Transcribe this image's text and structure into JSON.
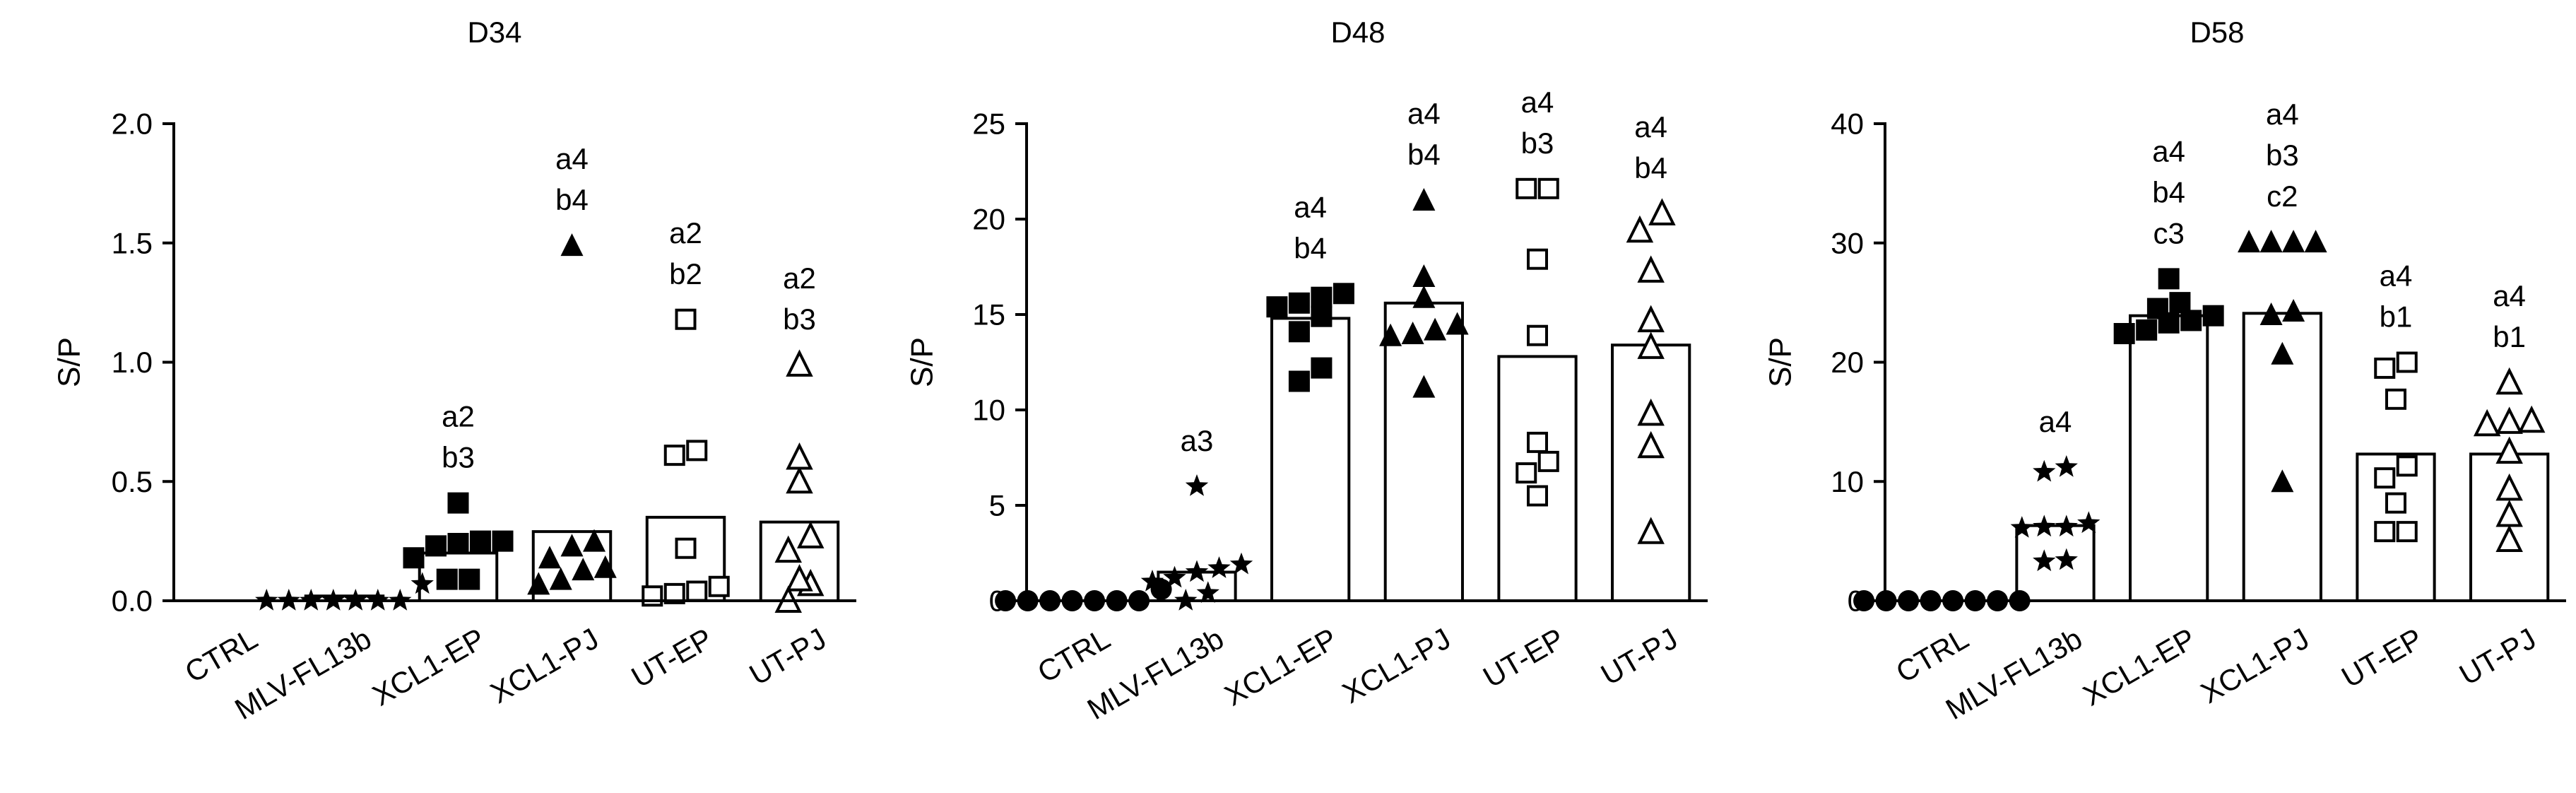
{
  "chart_data": [
    {
      "type": "bar",
      "title": "D34",
      "ylabel": "S/P",
      "xlabel": "",
      "ylim": [
        0,
        2.0
      ],
      "yticks": [
        0.0,
        0.5,
        1.0,
        1.5,
        2.0
      ],
      "ytick_labels": [
        "0.0",
        "0.5",
        "1.0",
        "1.5",
        "2.0"
      ],
      "categories": [
        "CTRL",
        "MLV-FL13b",
        "XCL1-EP",
        "XCL1-PJ",
        "UT-EP",
        "UT-PJ"
      ],
      "markers": [
        "circle-filled",
        "star",
        "square-filled",
        "triangle-filled",
        "square-open",
        "triangle-open"
      ],
      "values": [
        0.0,
        0.02,
        0.2,
        0.29,
        0.35,
        0.33
      ],
      "points": [
        [],
        [
          0.07,
          0.0,
          0.0,
          0.0,
          0.0,
          0.0,
          0.0,
          0.0
        ],
        [
          0.41,
          0.25,
          0.25,
          0.24,
          0.23,
          0.18,
          0.09,
          0.09
        ],
        [
          1.49,
          0.25,
          0.23,
          0.18,
          0.14,
          0.13,
          0.09,
          0.07
        ],
        [
          1.18,
          0.63,
          0.61,
          0.22,
          0.06,
          0.04,
          0.03,
          0.02
        ],
        [
          0.99,
          0.6,
          0.5,
          0.27,
          0.21,
          0.09,
          0.07,
          0.0
        ]
      ],
      "annotations": [
        [],
        [],
        [
          "a2",
          "b3"
        ],
        [
          "a4",
          "b4"
        ],
        [
          "a2",
          "b2"
        ],
        [
          "a2",
          "b3"
        ]
      ]
    },
    {
      "type": "bar",
      "title": "D48",
      "ylabel": "S/P",
      "xlabel": "",
      "ylim": [
        0,
        25
      ],
      "yticks": [
        0,
        5,
        10,
        15,
        20,
        25
      ],
      "ytick_labels": [
        "0",
        "5",
        "10",
        "15",
        "20",
        "25"
      ],
      "categories": [
        "CTRL",
        "MLV-FL13b",
        "XCL1-EP",
        "XCL1-PJ",
        "UT-EP",
        "UT-PJ"
      ],
      "markers": [
        "circle-filled",
        "star",
        "square-filled",
        "triangle-filled",
        "square-open",
        "triangle-open"
      ],
      "values": [
        0.0,
        1.5,
        14.8,
        15.6,
        12.8,
        13.4
      ],
      "points": [
        [
          0.6,
          0.0,
          0.0,
          0.0,
          0.0,
          0.0,
          0.0,
          0.0
        ],
        [
          6.0,
          1.9,
          1.7,
          1.5,
          1.2,
          1.0,
          0.4,
          0.0
        ],
        [
          16.1,
          15.9,
          15.6,
          15.4,
          14.9,
          14.1,
          12.2,
          11.5
        ],
        [
          21.0,
          17.0,
          15.9,
          14.5,
          14.2,
          14.0,
          13.9,
          11.2
        ],
        [
          21.6,
          21.6,
          17.9,
          13.9,
          8.3,
          7.3,
          6.7,
          5.5
        ],
        [
          20.3,
          19.4,
          17.3,
          14.7,
          13.3,
          9.8,
          8.1,
          3.6
        ]
      ],
      "annotations": [
        [],
        [
          "a3"
        ],
        [
          "a4",
          "b4"
        ],
        [
          "a4",
          "b4"
        ],
        [
          "a4",
          "b3"
        ],
        [
          "a4",
          "b4"
        ]
      ]
    },
    {
      "type": "bar",
      "title": "D58",
      "ylabel": "S/P",
      "xlabel": "",
      "ylim": [
        0,
        40
      ],
      "yticks": [
        0,
        10,
        20,
        30,
        40
      ],
      "ytick_labels": [
        "0",
        "10",
        "20",
        "30",
        "40"
      ],
      "categories": [
        "CTRL",
        "MLV-FL13b",
        "XCL1-EP",
        "XCL1-PJ",
        "UT-EP",
        "UT-PJ"
      ],
      "markers": [
        "circle-filled",
        "star",
        "square-filled",
        "triangle-filled",
        "square-open",
        "triangle-open"
      ],
      "values": [
        0.0,
        6.3,
        23.9,
        24.1,
        12.3,
        12.3
      ],
      "points": [
        [
          0.0,
          0.0,
          0.0,
          0.0,
          0.0,
          0.0,
          0.0,
          0.0
        ],
        [
          11.2,
          10.8,
          6.5,
          6.2,
          6.2,
          6.1,
          3.4,
          3.3
        ],
        [
          27.0,
          25.0,
          24.5,
          23.9,
          23.5,
          23.3,
          22.7,
          22.4
        ],
        [
          30.1,
          30.1,
          30.1,
          30.1,
          24.3,
          24.0,
          20.7,
          10.0
        ],
        [
          20.0,
          19.5,
          16.9,
          11.3,
          10.3,
          8.2,
          5.8,
          5.8
        ],
        [
          18.3,
          15.1,
          15.0,
          14.8,
          12.5,
          9.4,
          7.2,
          5.1
        ]
      ],
      "annotations": [
        [],
        [
          "a4"
        ],
        [
          "a4",
          "b4",
          "c3"
        ],
        [
          "a4",
          "b3",
          "c2"
        ],
        [
          "a4",
          "b1"
        ],
        [
          "a4",
          "b1"
        ]
      ]
    }
  ]
}
